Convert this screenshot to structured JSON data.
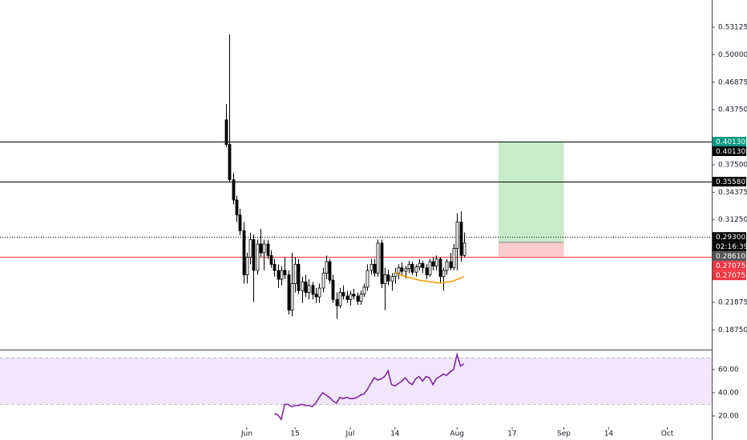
{
  "chart_data": {
    "type": "candlestick",
    "up_color": "#ffffff",
    "down_color": "#000000",
    "wick_color": "#000000",
    "x": [
      -6,
      -5,
      -4,
      -3,
      -2,
      -1,
      0,
      1,
      2,
      3,
      4,
      5,
      6,
      7,
      8,
      9,
      10,
      11,
      12,
      13,
      14,
      15,
      16,
      17,
      18,
      19,
      20,
      21,
      22,
      23,
      24,
      25,
      26,
      27,
      28,
      29,
      30,
      31,
      32,
      33,
      34,
      35,
      36,
      37,
      38,
      39,
      40,
      41,
      42,
      43,
      44,
      45,
      46,
      47,
      48,
      49,
      50,
      51,
      52,
      53,
      54,
      55,
      56,
      57,
      58,
      59,
      60,
      61,
      62,
      63
    ],
    "ohlc": [
      [
        0.426,
        0.444,
        0.395,
        0.398
      ],
      [
        0.398,
        0.523,
        0.355,
        0.358
      ],
      [
        0.358,
        0.366,
        0.33,
        0.335
      ],
      [
        0.335,
        0.34,
        0.31,
        0.318
      ],
      [
        0.318,
        0.325,
        0.295,
        0.3
      ],
      [
        0.3,
        0.31,
        0.24,
        0.25
      ],
      [
        0.25,
        0.275,
        0.24,
        0.27
      ],
      [
        0.27,
        0.298,
        0.262,
        0.29
      ],
      [
        0.29,
        0.296,
        0.219,
        0.255
      ],
      [
        0.255,
        0.29,
        0.25,
        0.285
      ],
      [
        0.285,
        0.302,
        0.27,
        0.275
      ],
      [
        0.275,
        0.29,
        0.255,
        0.285
      ],
      [
        0.285,
        0.29,
        0.268,
        0.272
      ],
      [
        0.272,
        0.278,
        0.258,
        0.262
      ],
      [
        0.262,
        0.268,
        0.248,
        0.255
      ],
      [
        0.255,
        0.262,
        0.235,
        0.245
      ],
      [
        0.245,
        0.26,
        0.238,
        0.255
      ],
      [
        0.255,
        0.27,
        0.245,
        0.25
      ],
      [
        0.25,
        0.255,
        0.205,
        0.21
      ],
      [
        0.21,
        0.275,
        0.203,
        0.24
      ],
      [
        0.24,
        0.27,
        0.23,
        0.262
      ],
      [
        0.262,
        0.268,
        0.228,
        0.232
      ],
      [
        0.232,
        0.248,
        0.218,
        0.242
      ],
      [
        0.242,
        0.25,
        0.225,
        0.23
      ],
      [
        0.23,
        0.245,
        0.222,
        0.238
      ],
      [
        0.238,
        0.242,
        0.222,
        0.228
      ],
      [
        0.228,
        0.235,
        0.218,
        0.225
      ],
      [
        0.225,
        0.24,
        0.218,
        0.235
      ],
      [
        0.235,
        0.258,
        0.23,
        0.252
      ],
      [
        0.252,
        0.272,
        0.245,
        0.265
      ],
      [
        0.265,
        0.268,
        0.24,
        0.244
      ],
      [
        0.244,
        0.25,
        0.218,
        0.222
      ],
      [
        0.222,
        0.23,
        0.2,
        0.215
      ],
      [
        0.215,
        0.235,
        0.212,
        0.23
      ],
      [
        0.23,
        0.238,
        0.222,
        0.226
      ],
      [
        0.226,
        0.232,
        0.218,
        0.222
      ],
      [
        0.222,
        0.232,
        0.215,
        0.228
      ],
      [
        0.228,
        0.234,
        0.222,
        0.226
      ],
      [
        0.226,
        0.23,
        0.216,
        0.22
      ],
      [
        0.22,
        0.232,
        0.216,
        0.228
      ],
      [
        0.228,
        0.24,
        0.225,
        0.236
      ],
      [
        0.236,
        0.262,
        0.232,
        0.255
      ],
      [
        0.255,
        0.268,
        0.25,
        0.262
      ],
      [
        0.262,
        0.268,
        0.248,
        0.252
      ],
      [
        0.252,
        0.29,
        0.248,
        0.286
      ],
      [
        0.286,
        0.29,
        0.235,
        0.24
      ],
      [
        0.24,
        0.258,
        0.21,
        0.25
      ],
      [
        0.25,
        0.256,
        0.238,
        0.243
      ],
      [
        0.243,
        0.252,
        0.232,
        0.248
      ],
      [
        0.248,
        0.258,
        0.24,
        0.252
      ],
      [
        0.252,
        0.262,
        0.245,
        0.258
      ],
      [
        0.258,
        0.264,
        0.25,
        0.254
      ],
      [
        0.254,
        0.26,
        0.246,
        0.257
      ],
      [
        0.257,
        0.266,
        0.252,
        0.262
      ],
      [
        0.262,
        0.265,
        0.25,
        0.253
      ],
      [
        0.253,
        0.262,
        0.248,
        0.259
      ],
      [
        0.259,
        0.268,
        0.255,
        0.263
      ],
      [
        0.263,
        0.266,
        0.252,
        0.258
      ],
      [
        0.258,
        0.262,
        0.245,
        0.25
      ],
      [
        0.25,
        0.268,
        0.248,
        0.265
      ],
      [
        0.265,
        0.27,
        0.255,
        0.26
      ],
      [
        0.26,
        0.272,
        0.255,
        0.268
      ],
      [
        0.268,
        0.27,
        0.24,
        0.248
      ],
      [
        0.248,
        0.258,
        0.232,
        0.255
      ],
      [
        0.255,
        0.268,
        0.25,
        0.265
      ],
      [
        0.265,
        0.275,
        0.255,
        0.258
      ],
      [
        0.258,
        0.285,
        0.255,
        0.28
      ],
      [
        0.28,
        0.32,
        0.255,
        0.31
      ],
      [
        0.31,
        0.322,
        0.265,
        0.272
      ],
      [
        0.272,
        0.298,
        0.27,
        0.2861
      ]
    ],
    "xlim": [
      -71.6,
      134.9
    ],
    "xticks": [
      {
        "value": 0,
        "label": "Jun"
      },
      {
        "value": 14,
        "label": "15"
      },
      {
        "value": 30,
        "label": "Jul"
      },
      {
        "value": 43,
        "label": "14"
      },
      {
        "value": 61,
        "label": "Aug"
      },
      {
        "value": 77,
        "label": "17"
      },
      {
        "value": 92,
        "label": "Sep"
      },
      {
        "value": 105,
        "label": "14"
      },
      {
        "value": 122,
        "label": "Oct"
      }
    ],
    "ylim": [
      0.1651,
      0.5621
    ],
    "yticks": [
      0.53125,
      {
        "value": 0.5,
        "label": "0.50000"
      },
      0.46875,
      {
        "value": 0.4375,
        "label": "0.43750"
      },
      {
        "value": 0.375,
        "label": "0.37500"
      },
      0.34375,
      {
        "value": 0.3125,
        "label": "0.31250"
      },
      0.21875,
      {
        "value": 0.1875,
        "label": "0.18750"
      }
    ],
    "ma": {
      "color": "#f59b00",
      "x": [
        43,
        44,
        45,
        46,
        47,
        48,
        49,
        50,
        51,
        52,
        53,
        54,
        55,
        56,
        57,
        58,
        59,
        60,
        61,
        62,
        63
      ],
      "values": [
        0.253,
        0.251,
        0.249,
        0.248,
        0.247,
        0.246,
        0.245,
        0.244,
        0.243,
        0.243,
        0.242,
        0.242,
        0.241,
        0.241,
        0.241,
        0.242,
        0.242,
        0.243,
        0.245,
        0.246,
        0.248
      ]
    },
    "levels": [
      {
        "value": 0.4013,
        "color": "#000000",
        "style": "solid"
      },
      {
        "value": 0.3558,
        "color": "#000000",
        "style": "solid"
      },
      {
        "value": 0.293,
        "color": "#000000",
        "style": "dotted"
      },
      {
        "value": 0.27075,
        "color": "#f23645",
        "style": "solid"
      }
    ],
    "position": {
      "x": [
        73,
        92
      ],
      "target": 0.4013,
      "entry": 0.287,
      "stop": 0.27075,
      "profit_color": "#c8ebc9",
      "loss_color": "#fccbcd"
    },
    "price_labels": [
      {
        "value": 0.4013,
        "label": "0.40130",
        "bg": "#089981"
      },
      {
        "value": 0.4013,
        "label": "0.40130",
        "bg": "#000000"
      },
      {
        "value": 0.3558,
        "label": "0.35580",
        "bg": "#000000"
      },
      {
        "value": 0.293,
        "label": "0.29300",
        "bg": "#000000"
      },
      {
        "label": "02:16:39",
        "bg": "#000000"
      },
      {
        "value": 0.2861,
        "label": "0.28610",
        "bg": "#555555"
      },
      {
        "value": 0.27075,
        "label": "0.27075",
        "bg": "#f23645"
      },
      {
        "value": 0.27075,
        "label": "0.27075",
        "bg": "#f23645"
      }
    ],
    "rsi": {
      "color": "#7b1fa2",
      "band_color": "#f1e6fc",
      "band": [
        30,
        70
      ],
      "ylim": [
        11.7,
        77.2
      ],
      "yticks": [
        {
          "value": 60,
          "label": "60.00"
        },
        {
          "value": 40,
          "label": "40.00"
        },
        {
          "value": 20,
          "label": "20.00"
        }
      ],
      "x": [
        8,
        9,
        10,
        11,
        12,
        13,
        14,
        15,
        16,
        17,
        18,
        19,
        20,
        21,
        22,
        23,
        24,
        25,
        26,
        27,
        28,
        29,
        30,
        31,
        32,
        33,
        34,
        35,
        36,
        37,
        38,
        39,
        40,
        41,
        42,
        43,
        44,
        45,
        46,
        47,
        48,
        49,
        50,
        51,
        52,
        53,
        54,
        55,
        56,
        57,
        58,
        59,
        60,
        61,
        62,
        63
      ],
      "values": [
        22,
        21,
        17,
        30,
        30,
        28,
        29,
        29,
        30,
        29,
        29,
        28,
        31,
        36,
        40,
        38,
        36,
        33,
        31,
        36,
        35,
        36,
        35,
        35,
        36,
        38,
        39,
        43,
        48,
        53,
        51,
        52,
        54,
        59,
        47,
        46,
        48,
        50,
        53,
        49,
        47,
        52,
        54,
        50,
        54,
        53,
        47,
        52,
        54,
        56,
        55,
        58,
        60,
        73,
        63,
        65
      ]
    }
  }
}
